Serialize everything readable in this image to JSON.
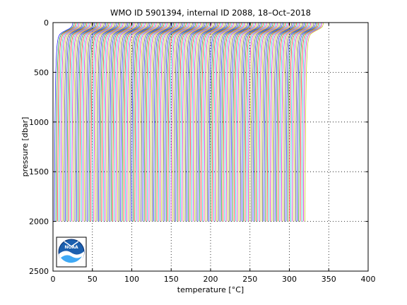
{
  "chart_data": {
    "type": "line",
    "title": "WMO ID 5901394, internal ID 2088, 18–Oct–2018",
    "xlabel_prefix": "temperature [",
    "xlabel_unit": "°C",
    "xlabel_suffix": "]",
    "ylabel": "pressure [dbar]",
    "xlim": [
      0,
      400
    ],
    "ylim": [
      0,
      2500
    ],
    "y_reversed": true,
    "x_ticks": [
      0,
      50,
      100,
      150,
      200,
      250,
      300,
      350,
      400
    ],
    "y_ticks": [
      0,
      500,
      1000,
      1500,
      2000,
      2500
    ],
    "grid": "dotted",
    "series_colors": [
      "#0000ff",
      "#008000",
      "#ff0000",
      "#00bfbf",
      "#bf00bf",
      "#bfbf00",
      "#404040"
    ],
    "profile_count": 160,
    "profile_offset_step": 2,
    "profile_shape": {
      "pressure": [
        0,
        10,
        20,
        40,
        60,
        80,
        100,
        120,
        150,
        200,
        250,
        300,
        400,
        500,
        600,
        800,
        1000,
        1200,
        1500,
        1800,
        2000
      ],
      "temperature": [
        25.0,
        25.0,
        24.8,
        24.0,
        21.0,
        16.0,
        11.5,
        8.5,
        6.8,
        5.6,
        5.0,
        4.6,
        4.0,
        3.6,
        3.3,
        2.9,
        2.6,
        2.4,
        2.1,
        1.9,
        1.8
      ]
    }
  },
  "logo": {
    "text": "NOAA"
  }
}
